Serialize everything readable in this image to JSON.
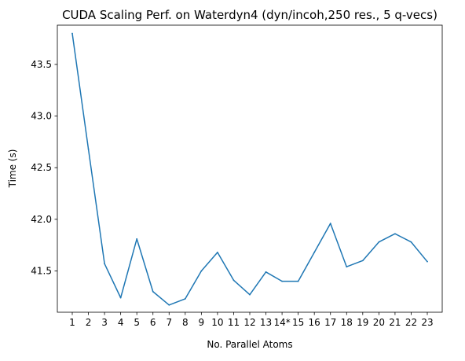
{
  "chart_data": {
    "type": "line",
    "title": "CUDA Scaling Perf. on Waterdyn4 (dyn/incoh,250 res., 5 q-vecs)",
    "xlabel": "No. Parallel Atoms",
    "ylabel": "Time (s)",
    "categories": [
      "1",
      "2",
      "3",
      "4",
      "5",
      "6",
      "7",
      "8",
      "9",
      "10",
      "11",
      "12",
      "13",
      "14*",
      "15",
      "16",
      "17",
      "18",
      "19",
      "20",
      "21",
      "22",
      "23"
    ],
    "series": [
      {
        "color": "#1f77b4",
        "values": [
          43.8,
          42.68,
          41.57,
          41.24,
          41.81,
          41.3,
          41.17,
          41.23,
          41.5,
          41.68,
          41.41,
          41.27,
          41.49,
          41.4,
          41.4,
          41.68,
          41.96,
          41.54,
          41.6,
          41.78,
          41.86,
          41.78,
          41.59
        ]
      }
    ],
    "y_ticks": [
      41.5,
      42.0,
      42.5,
      43.0,
      43.5
    ],
    "y_tick_labels": [
      "41.5",
      "42.0",
      "42.5",
      "43.0",
      "43.5"
    ],
    "ylim": [
      41.1,
      43.88
    ],
    "grid": false,
    "legend": "none"
  }
}
